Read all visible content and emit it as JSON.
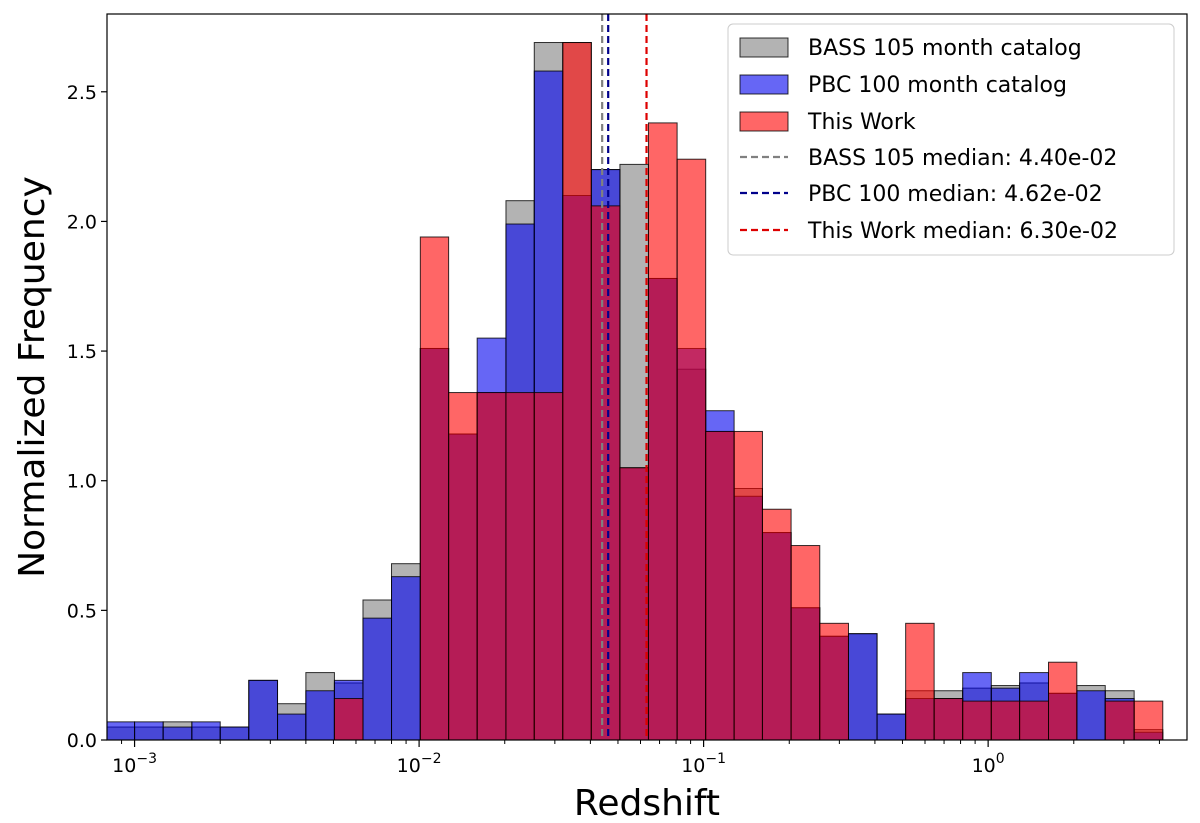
{
  "chart_data": {
    "type": "bar",
    "title": "",
    "xlabel": "Redshift",
    "ylabel": "Normalized Frequency",
    "xscale": "log",
    "xlim": [
      0.0008,
      5.0
    ],
    "ylim": [
      0,
      2.8
    ],
    "grid": false,
    "legend_position": "top-right",
    "x_ticks": [
      {
        "value": 0.001,
        "base": "10",
        "exp": "−3"
      },
      {
        "value": 0.01,
        "base": "10",
        "exp": "−2"
      },
      {
        "value": 0.1,
        "base": "10",
        "exp": "−1"
      },
      {
        "value": 1,
        "base": "10",
        "exp": "0"
      }
    ],
    "y_ticks": [
      "0.0",
      "0.5",
      "1.0",
      "1.5",
      "2.0",
      "2.5"
    ],
    "bin_edges": [
      0.00079,
      0.001,
      0.00126,
      0.00159,
      0.002,
      0.00252,
      0.00318,
      0.004,
      0.00504,
      0.00635,
      0.008,
      0.0101,
      0.0127,
      0.016,
      0.0202,
      0.0254,
      0.032,
      0.0403,
      0.0508,
      0.064,
      0.0807,
      0.1017,
      0.128,
      0.161,
      0.203,
      0.256,
      0.323,
      0.407,
      0.513,
      0.646,
      0.814,
      1.026,
      1.29,
      1.63,
      2.05,
      2.58,
      3.26,
      4.11,
      5.18
    ],
    "series": [
      {
        "name": "BASS 105 month catalog",
        "color": "#808080",
        "values": [
          0.05,
          0.05,
          0.07,
          0.05,
          0.05,
          0.23,
          0.14,
          0.26,
          0.22,
          0.54,
          0.68,
          1.51,
          1.18,
          1.34,
          2.08,
          2.69,
          2.69,
          2.2,
          2.22,
          1.78,
          1.43,
          1.19,
          0.97,
          0.8,
          0.51,
          0.4,
          0.41,
          0.1,
          0.19,
          0.19,
          0.2,
          0.21,
          0.22,
          0.18,
          0.21,
          0.19,
          0.04
        ]
      },
      {
        "name": "PBC 100 month catalog",
        "color": "#0000ee",
        "values": [
          0.07,
          0.07,
          0.05,
          0.07,
          0.05,
          0.23,
          0.1,
          0.19,
          0.23,
          0.47,
          0.63,
          1.51,
          1.18,
          1.55,
          1.99,
          2.58,
          2.1,
          2.2,
          1.05,
          1.78,
          1.51,
          1.27,
          0.94,
          0.8,
          0.51,
          0.4,
          0.41,
          0.1,
          0.16,
          0.16,
          0.26,
          0.2,
          0.26,
          0.18,
          0.19,
          0.16,
          0.03
        ]
      },
      {
        "name": "This Work",
        "color": "#ff0000",
        "values": [
          0,
          0,
          0,
          0,
          0,
          0,
          0,
          0,
          0.16,
          0,
          0,
          1.94,
          1.34,
          1.34,
          1.34,
          1.34,
          2.69,
          2.06,
          1.05,
          2.38,
          2.24,
          1.19,
          1.19,
          0.89,
          0.75,
          0.45,
          0,
          0,
          0.45,
          0.16,
          0.15,
          0.15,
          0.15,
          0.3,
          0,
          0.15,
          0.15
        ]
      }
    ],
    "medians": [
      {
        "name": "BASS 105 median: 4.40e-02",
        "value": 0.044,
        "color": "#808080"
      },
      {
        "name": "PBC 100 median: 4.62e-02",
        "value": 0.0462,
        "color": "#00008b"
      },
      {
        "name": "This Work median: 6.30e-02",
        "value": 0.063,
        "color": "#dd0000"
      }
    ]
  }
}
